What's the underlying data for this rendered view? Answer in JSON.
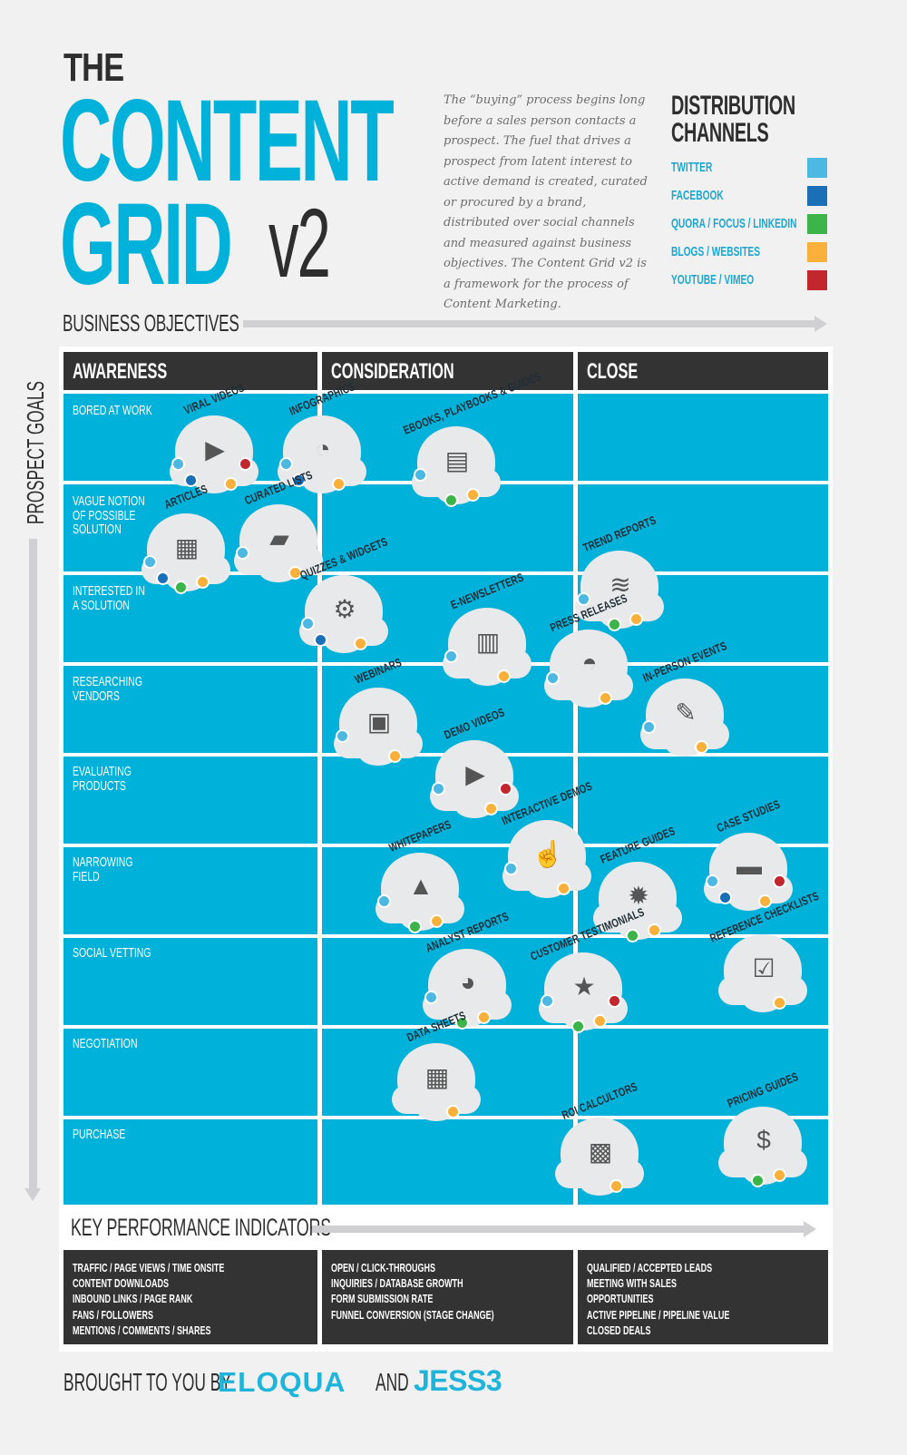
{
  "title": {
    "line1": "THE",
    "line2": "CONTENT",
    "line3": "GRID",
    "version": "v2"
  },
  "intro_text": "The “buying” process begins long before a sales person contacts a prospect. The fuel that drives a prospect from latent interest to active demand is created, curated or procured by a brand, distributed over social channels and measured against business objectives. The Content Grid v2 is a framework for the process of Content Marketing.",
  "distribution_channels": {
    "title_line1": "DISTRIBUTION",
    "title_line2": "CHANNELS",
    "items": [
      {
        "label": "TWITTER",
        "color": "#4db8e2"
      },
      {
        "label": "FACEBOOK",
        "color": "#1a6fb7"
      },
      {
        "label": "QUORA / FOCUS / LINKEDIN",
        "color": "#3cb44a"
      },
      {
        "label": "BLOGS / WEBSITES",
        "color": "#fbb03b"
      },
      {
        "label": "YOUTUBE / VIMEO",
        "color": "#c1272d"
      }
    ]
  },
  "axes": {
    "business_objectives": "BUSINESS OBJECTIVES",
    "prospect_goals": "PROSPECT GOALS",
    "kpi": "KEY PERFORMANCE INDICATORS"
  },
  "columns": [
    "AWARENESS",
    "CONSIDERATION",
    "CLOSE"
  ],
  "rows": [
    "BORED AT WORK",
    "VAGUE NOTION\nOF POSSIBLE\nSOLUTION",
    "INTERESTED IN\nA SOLUTION",
    "RESEARCHING\nVENDORS",
    "EVALUATING\nPRODUCTS",
    "NARROWING\nFIELD",
    "SOCIAL VETTING",
    "NEGOTIATION",
    "PURCHASE"
  ],
  "content_types": [
    {
      "name": "VIRAL VIDEOS",
      "icon": "tv-play-icon",
      "glyph": "▶",
      "channels": [
        "twitter",
        "facebook",
        "blogs",
        "youtube"
      ]
    },
    {
      "name": "INFOGRAPHICS",
      "icon": "presentation-chart-icon",
      "glyph": "◔",
      "channels": [
        "twitter",
        "facebook",
        "blogs"
      ]
    },
    {
      "name": "EBOOKS, PLAYBOOKS & GUIDES",
      "icon": "ereader-icon",
      "glyph": "▤",
      "channels": [
        "twitter",
        "quora",
        "blogs"
      ]
    },
    {
      "name": "ARTICLES",
      "icon": "newspaper-icon",
      "glyph": "▦",
      "channels": [
        "twitter",
        "facebook",
        "quora",
        "blogs"
      ]
    },
    {
      "name": "CURATED LISTS",
      "icon": "top-ten-book-icon",
      "glyph": "▰",
      "channels": [
        "twitter",
        "blogs"
      ]
    },
    {
      "name": "TREND REPORTS",
      "icon": "trend-chart-icon",
      "glyph": "≋",
      "channels": [
        "twitter",
        "quora",
        "blogs"
      ]
    },
    {
      "name": "QUIZZES & WIDGETS",
      "icon": "gears-icon",
      "glyph": "⚙",
      "channels": [
        "twitter",
        "facebook",
        "blogs"
      ]
    },
    {
      "name": "E-NEWSLETTERS",
      "icon": "newsletter-cursor-icon",
      "glyph": "▥",
      "channels": [
        "twitter",
        "blogs"
      ]
    },
    {
      "name": "PRESS RELEASES",
      "icon": "press-hat-icon",
      "glyph": "◓",
      "channels": [
        "twitter",
        "blogs"
      ]
    },
    {
      "name": "WEBINARS",
      "icon": "webinar-screen-icon",
      "glyph": "▣",
      "channels": [
        "twitter",
        "blogs"
      ]
    },
    {
      "name": "IN-PERSON EVENTS",
      "icon": "name-tag-icon",
      "glyph": "✎",
      "channels": [
        "twitter",
        "blogs"
      ]
    },
    {
      "name": "DEMO VIDEOS",
      "icon": "step-video-icon",
      "glyph": "▶",
      "channels": [
        "twitter",
        "blogs",
        "youtube"
      ]
    },
    {
      "name": "INTERACTIVE DEMOS",
      "icon": "demo-click-icon",
      "glyph": "☝",
      "channels": [
        "twitter",
        "blogs"
      ]
    },
    {
      "name": "WHITEPAPERS",
      "icon": "paper-weight-icon",
      "glyph": "▲",
      "channels": [
        "twitter",
        "quora",
        "blogs"
      ]
    },
    {
      "name": "FEATURE GUIDES",
      "icon": "feature-blueprint-icon",
      "glyph": "✹",
      "channels": [
        "quora",
        "blogs"
      ]
    },
    {
      "name": "CASE STUDIES",
      "icon": "briefcase-icon",
      "glyph": "▬",
      "channels": [
        "twitter",
        "facebook",
        "blogs",
        "youtube"
      ]
    },
    {
      "name": "ANALYST REPORTS",
      "icon": "report-pie-icon",
      "glyph": "◕",
      "channels": [
        "twitter",
        "quora",
        "blogs"
      ]
    },
    {
      "name": "CUSTOMER TESTIMONIALS",
      "icon": "star-person-icon",
      "glyph": "★",
      "channels": [
        "twitter",
        "quora",
        "blogs",
        "youtube"
      ]
    },
    {
      "name": "REFERENCE CHECKLISTS",
      "icon": "checklist-icon",
      "glyph": "☑",
      "channels": [
        "blogs"
      ]
    },
    {
      "name": "DATA SHEETS",
      "icon": "data-sheet-icon",
      "glyph": "▦",
      "channels": [
        "blogs"
      ]
    },
    {
      "name": "ROI CALCULTORS",
      "icon": "calculator-icon",
      "glyph": "▩",
      "channels": [
        "blogs"
      ]
    },
    {
      "name": "PRICING GUIDES",
      "icon": "dollar-bill-icon",
      "glyph": "$",
      "channels": [
        "quora",
        "blogs"
      ]
    }
  ],
  "kpis": [
    {
      "column": "AWARENESS",
      "lines": [
        "TRAFFIC / PAGE VIEWS / TIME ONSITE",
        "CONTENT DOWNLOADS",
        "INBOUND LINKS / PAGE RANK",
        "FANS / FOLLOWERS",
        "MENTIONS / COMMENTS / SHARES"
      ]
    },
    {
      "column": "CONSIDERATION",
      "lines": [
        "OPEN / CLICK-THROUGHS",
        "INQUIRIES / DATABASE GROWTH",
        "FORM SUBMISSION RATE",
        "FUNNEL CONVERSION (STAGE CHANGE)"
      ]
    },
    {
      "column": "CLOSE",
      "lines": [
        "QUALIFIED / ACCEPTED LEADS",
        "MEETING WITH SALES",
        "OPPORTUNITIES",
        "ACTIVE PIPELINE / PIPELINE VALUE",
        "CLOSED DEALS"
      ]
    }
  ],
  "footer": {
    "prefix": "BROUGHT TO YOU BY",
    "brand1": "ELOQUA",
    "conjunction": "AND",
    "brand2": "JESS3"
  },
  "colors": {
    "cyan": "#00b1d9",
    "dark": "#333333",
    "background": "#f1f1f1",
    "bubble": "#e8e9ea"
  }
}
